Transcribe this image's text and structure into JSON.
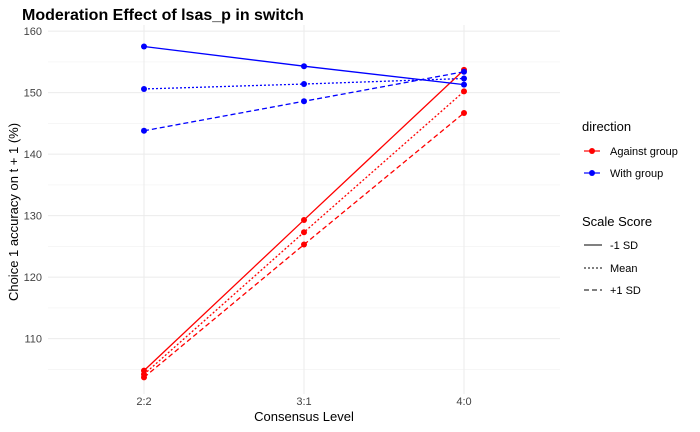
{
  "chart_data": {
    "type": "line",
    "title": "Moderation Effect of lsas_p in switch",
    "xlabel": "Consensus Level",
    "ylabel": "Choice 1 accuracy on t + 1 (%)",
    "categories": [
      "2:2",
      "3:1",
      "4:0"
    ],
    "ylim": [
      101,
      161
    ],
    "yticks": [
      110,
      120,
      130,
      140,
      150,
      160
    ],
    "grid": true,
    "legend_placement": "right",
    "legends": {
      "color": {
        "title": "direction",
        "entries": [
          {
            "label": "Against group",
            "color": "#ff0000"
          },
          {
            "label": "With group",
            "color": "#0000ff"
          }
        ]
      },
      "linetype": {
        "title": "Scale Score",
        "entries": [
          {
            "label": "-1 SD",
            "dash": "solid"
          },
          {
            "label": "Mean",
            "dash": "dotted"
          },
          {
            "label": "+1 SD",
            "dash": "dashed"
          }
        ]
      }
    },
    "series": [
      {
        "direction": "Against group",
        "scale": "-1 SD",
        "color": "#ff0000",
        "dash": "solid",
        "values": [
          104.8,
          129.3,
          153.7
        ]
      },
      {
        "direction": "Against group",
        "scale": "Mean",
        "color": "#ff0000",
        "dash": "dotted",
        "values": [
          104.2,
          127.3,
          150.2
        ]
      },
      {
        "direction": "Against group",
        "scale": "+1 SD",
        "color": "#ff0000",
        "dash": "dashed",
        "values": [
          103.7,
          125.3,
          146.7
        ]
      },
      {
        "direction": "With group",
        "scale": "-1 SD",
        "color": "#0000ff",
        "dash": "solid",
        "values": [
          157.5,
          154.3,
          151.3
        ]
      },
      {
        "direction": "With group",
        "scale": "Mean",
        "color": "#0000ff",
        "dash": "dotted",
        "values": [
          150.6,
          151.4,
          152.3
        ]
      },
      {
        "direction": "With group",
        "scale": "+1 SD",
        "color": "#0000ff",
        "dash": "dashed",
        "values": [
          143.8,
          148.6,
          153.4
        ]
      }
    ]
  }
}
